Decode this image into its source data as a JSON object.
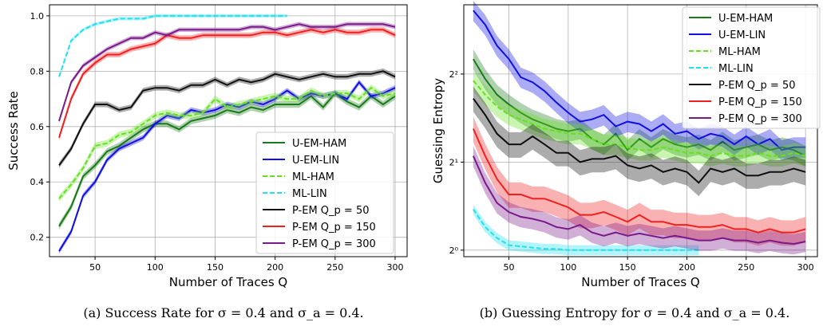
{
  "chart_data": [
    {
      "type": "line",
      "caption": "(a) Success Rate for σ = 0.4 and σ_a = 0.4.",
      "xlabel": "Number of Traces Q",
      "ylabel": "Success Rate",
      "xlim": [
        12,
        310
      ],
      "ylim": [
        0.13,
        1.04
      ],
      "xticks": [
        50,
        100,
        150,
        200,
        250,
        300
      ],
      "yticks": [
        0.2,
        0.4,
        0.6,
        0.8,
        1.0
      ],
      "ytick_labels": [
        "0.2",
        "0.4",
        "0.6",
        "0.8",
        "1.0"
      ],
      "grid": true,
      "legend_position": "lower-right",
      "x": [
        20,
        30,
        40,
        50,
        60,
        70,
        80,
        90,
        100,
        110,
        120,
        130,
        140,
        150,
        160,
        170,
        180,
        190,
        200,
        210,
        220,
        230,
        240,
        250,
        260,
        270,
        280,
        290,
        300
      ],
      "series": [
        {
          "name": "U-EM-HAM",
          "color": "#1a7a1a",
          "dash": "solid",
          "band": 0.012,
          "values": [
            0.24,
            0.31,
            0.42,
            0.46,
            0.51,
            0.53,
            0.56,
            0.59,
            0.61,
            0.61,
            0.59,
            0.62,
            0.63,
            0.64,
            0.66,
            0.65,
            0.67,
            0.66,
            0.68,
            0.68,
            0.68,
            0.71,
            0.67,
            0.72,
            0.69,
            0.67,
            0.71,
            0.68,
            0.71
          ]
        },
        {
          "name": "U-EM-LIN",
          "color": "#1010e0",
          "dash": "solid",
          "band": 0.01,
          "values": [
            0.15,
            0.22,
            0.35,
            0.4,
            0.48,
            0.52,
            0.54,
            0.56,
            0.61,
            0.64,
            0.63,
            0.66,
            0.65,
            0.66,
            0.68,
            0.67,
            0.69,
            0.68,
            0.7,
            0.73,
            0.7,
            0.72,
            0.71,
            0.72,
            0.7,
            0.76,
            0.71,
            0.72,
            0.74
          ]
        },
        {
          "name": "ML-HAM",
          "color": "#66e020",
          "dash": "dashed",
          "band": 0.012,
          "values": [
            0.34,
            0.39,
            0.45,
            0.53,
            0.54,
            0.57,
            0.58,
            0.61,
            0.64,
            0.65,
            0.64,
            0.64,
            0.65,
            0.7,
            0.67,
            0.68,
            0.69,
            0.7,
            0.71,
            0.7,
            0.7,
            0.73,
            0.71,
            0.72,
            0.72,
            0.7,
            0.74,
            0.71,
            0.72
          ]
        },
        {
          "name": "ML-LIN",
          "color": "#20e0f0",
          "dash": "dashed",
          "band": 0.006,
          "values": [
            0.78,
            0.91,
            0.95,
            0.97,
            0.98,
            0.99,
            0.99,
            0.99,
            1.0,
            1.0,
            1.0,
            1.0,
            1.0,
            1.0,
            1.0,
            1.0,
            1.0,
            1.0,
            1.0,
            1.0,
            null,
            null,
            null,
            null,
            null,
            null,
            null,
            null,
            null
          ]
        },
        {
          "name": "P-EM Q_p = 50",
          "color": "#101010",
          "dash": "solid",
          "band": 0.01,
          "values": [
            0.46,
            0.52,
            0.61,
            0.68,
            0.68,
            0.66,
            0.67,
            0.73,
            0.74,
            0.74,
            0.73,
            0.75,
            0.75,
            0.77,
            0.75,
            0.77,
            0.76,
            0.77,
            0.79,
            0.78,
            0.77,
            0.78,
            0.79,
            0.78,
            0.78,
            0.79,
            0.79,
            0.8,
            0.78
          ]
        },
        {
          "name": "P-EM Q_p = 150",
          "color": "#f02020",
          "dash": "solid",
          "band": 0.01,
          "values": [
            0.56,
            0.7,
            0.79,
            0.83,
            0.86,
            0.86,
            0.88,
            0.89,
            0.9,
            0.93,
            0.92,
            0.92,
            0.93,
            0.93,
            0.93,
            0.93,
            0.93,
            0.94,
            0.94,
            0.93,
            0.94,
            0.95,
            0.94,
            0.95,
            0.94,
            0.94,
            0.95,
            0.95,
            0.93
          ]
        },
        {
          "name": "P-EM Q_p = 300",
          "color": "#7a1a8a",
          "dash": "solid",
          "band": 0.008,
          "values": [
            0.62,
            0.76,
            0.82,
            0.85,
            0.88,
            0.9,
            0.92,
            0.92,
            0.94,
            0.93,
            0.95,
            0.95,
            0.95,
            0.95,
            0.95,
            0.95,
            0.96,
            0.96,
            0.95,
            0.96,
            0.97,
            0.96,
            0.96,
            0.96,
            0.97,
            0.97,
            0.97,
            0.97,
            0.96
          ]
        }
      ]
    },
    {
      "type": "line",
      "caption": "(b) Guessing Entropy for σ = 0.4 and σ_a = 0.4.",
      "xlabel": "Number of Traces Q",
      "ylabel": "Guessing Entropy",
      "xlim": [
        12,
        310
      ],
      "ylim": [
        0.95,
        6.9
      ],
      "log_scale_y": 2,
      "xticks": [
        50,
        100,
        150,
        200,
        250,
        300
      ],
      "yticks": [
        1,
        2,
        4
      ],
      "ytick_labels": [
        "2⁰",
        "2¹",
        "2²"
      ],
      "grid": true,
      "legend_position": "upper-right",
      "x": [
        20,
        30,
        40,
        50,
        60,
        70,
        80,
        90,
        100,
        110,
        120,
        130,
        140,
        150,
        160,
        170,
        180,
        190,
        200,
        210,
        220,
        230,
        240,
        250,
        260,
        270,
        280,
        290,
        300
      ],
      "series": [
        {
          "name": "U-EM-HAM",
          "color": "#1a7a1a",
          "dash": "solid",
          "band": 0.02,
          "values": [
            4.5,
            3.85,
            3.4,
            3.15,
            2.95,
            2.8,
            2.7,
            2.6,
            2.55,
            2.6,
            2.4,
            2.3,
            2.5,
            2.2,
            2.4,
            2.25,
            2.4,
            2.3,
            2.25,
            2.3,
            2.2,
            2.35,
            2.2,
            2.25,
            2.3,
            2.2,
            2.25,
            2.2,
            2.1
          ]
        },
        {
          "name": "U-EM-LIN",
          "color": "#1010e0",
          "dash": "solid",
          "band": 0.02,
          "values": [
            6.6,
            5.9,
            5.0,
            4.5,
            3.9,
            3.75,
            3.5,
            3.2,
            2.95,
            2.75,
            2.8,
            2.9,
            2.65,
            2.75,
            2.7,
            2.55,
            2.7,
            2.5,
            2.55,
            2.4,
            2.5,
            2.45,
            2.3,
            2.45,
            2.3,
            2.4,
            2.2,
            2.25,
            2.25
          ]
        },
        {
          "name": "ML-HAM",
          "color": "#66e020",
          "dash": "dashed",
          "band": 0.02,
          "values": [
            3.8,
            3.4,
            3.1,
            2.9,
            2.8,
            2.7,
            2.6,
            2.55,
            2.5,
            2.5,
            2.4,
            2.3,
            2.3,
            2.25,
            2.2,
            2.2,
            2.25,
            2.2,
            2.15,
            2.15,
            2.1,
            2.15,
            2.1,
            2.1,
            2.15,
            2.1,
            2.1,
            2.15,
            2.1
          ]
        },
        {
          "name": "ML-LIN",
          "color": "#20e0f0",
          "dash": "dashed",
          "band": 0.01,
          "values": [
            1.38,
            1.2,
            1.1,
            1.04,
            1.03,
            1.02,
            1.01,
            1.01,
            1.0,
            1.0,
            1.0,
            1.0,
            1.0,
            1.0,
            1.0,
            1.0,
            1.0,
            1.0,
            1.0,
            1.0,
            null,
            null,
            null,
            null,
            null,
            null,
            null,
            null,
            null
          ]
        },
        {
          "name": "P-EM Q_p = 50",
          "color": "#101010",
          "dash": "solid",
          "band": 0.025,
          "values": [
            3.3,
            2.9,
            2.5,
            2.3,
            2.3,
            2.45,
            2.3,
            2.15,
            2.15,
            2.0,
            2.05,
            2.05,
            2.1,
            1.95,
            1.9,
            1.95,
            1.85,
            1.9,
            1.85,
            1.7,
            1.9,
            1.85,
            1.9,
            1.8,
            1.8,
            1.85,
            1.85,
            1.9,
            1.85
          ]
        },
        {
          "name": "P-EM Q_p = 150",
          "color": "#f02020",
          "dash": "solid",
          "band": 0.025,
          "values": [
            2.6,
            2.1,
            1.75,
            1.55,
            1.55,
            1.5,
            1.5,
            1.45,
            1.4,
            1.32,
            1.32,
            1.35,
            1.3,
            1.25,
            1.32,
            1.25,
            1.25,
            1.22,
            1.22,
            1.2,
            1.2,
            1.22,
            1.18,
            1.18,
            1.15,
            1.18,
            1.15,
            1.15,
            1.18
          ]
        },
        {
          "name": "P-EM Q_p = 300",
          "color": "#7a1a8a",
          "dash": "solid",
          "band": 0.02,
          "values": [
            2.1,
            1.7,
            1.45,
            1.35,
            1.3,
            1.28,
            1.25,
            1.2,
            1.18,
            1.22,
            1.15,
            1.12,
            1.15,
            1.12,
            1.14,
            1.12,
            1.1,
            1.12,
            1.1,
            1.08,
            1.08,
            1.1,
            1.08,
            1.08,
            1.06,
            1.08,
            1.06,
            1.05,
            1.07
          ]
        }
      ]
    }
  ]
}
